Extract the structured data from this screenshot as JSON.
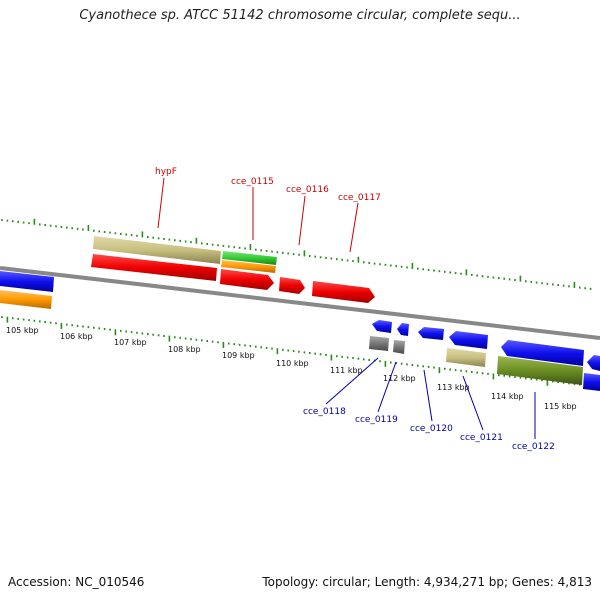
{
  "header": {
    "title": "Cyanothece sp. ATCC 51142 chromosome circular, complete sequ..."
  },
  "footer": {
    "accession": "Accession: NC_010546",
    "summary": "Topology: circular; Length: 4,934,271 bp; Genes: 4,813"
  },
  "map": {
    "kbp_labels": [
      "105 kbp",
      "106 kbp",
      "107 kbp",
      "108 kbp",
      "109 kbp",
      "110 kbp",
      "111 kbp",
      "112 kbp",
      "113 kbp",
      "114 kbp",
      "115 kbp"
    ],
    "upper_gene_labels": [
      "hypF",
      "cce_0115",
      "cce_0116",
      "cce_0117"
    ],
    "lower_gene_labels": [
      "cce_0118",
      "cce_0119",
      "cce_0120",
      "cce_0121",
      "cce_0122"
    ],
    "colors": {
      "tick": "#2a8a1a",
      "backbone": "#888888",
      "forward_cds": "#ee0000",
      "reverse_cds": "#1010ee",
      "gene_tan": "#c8c080",
      "gene_green": "#33cc33",
      "gene_orange": "#ff9900",
      "gene_olive": "#6b8e23",
      "gene_gray": "#777777",
      "upper_label": "#cc0000",
      "lower_label": "#0000aa"
    }
  }
}
